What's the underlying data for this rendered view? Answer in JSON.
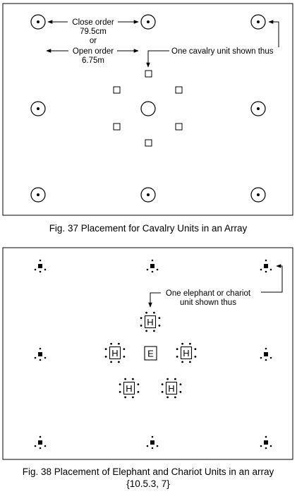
{
  "fig37": {
    "caption": "Fig. 37 Placement for Cavalry Units in an Array",
    "close_order_label": "Close order",
    "close_order_value": "79.5cm",
    "or_label": "or",
    "open_order_label": "Open order",
    "open_order_value": "6.75m",
    "cavalry_note": "One cavalry unit shown thus"
  },
  "fig38": {
    "caption_line1": "Fig. 38 Placement of Elephant and Chariot Units in an array",
    "caption_line2": "{10.5.3, 7}",
    "note_line1": "One elephant or chariot",
    "note_line2": "unit shown thus",
    "horse_letter": "H",
    "elephant_letter": "E"
  }
}
